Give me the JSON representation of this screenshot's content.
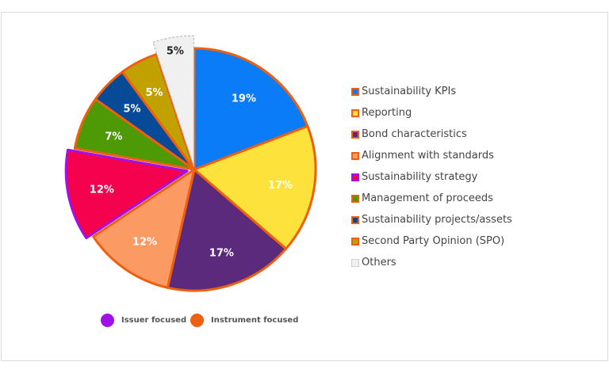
{
  "chart_data": {
    "type": "pie",
    "categories": [
      "Sustainability KPIs",
      "Reporting",
      "Bond characteristics",
      "Alignment with standards",
      "Sustainability strategy",
      "Management of proceeds",
      "Sustainability projects/assets",
      "Second Party Opinion (SPO)",
      "Others"
    ],
    "values": [
      19,
      17,
      17,
      12,
      12,
      7,
      5,
      5,
      5
    ],
    "labels": [
      "19%",
      "17%",
      "17%",
      "12%",
      "12%",
      "7%",
      "5%",
      "5%",
      "5%"
    ],
    "colors": [
      "#0a7cf7",
      "#fde23c",
      "#5b2a7c",
      "#fb9b63",
      "#f5024f",
      "#4e9a06",
      "#074a97",
      "#c1a100",
      "#f0f0f0"
    ],
    "border_colors": [
      "#ee5f0f",
      "#ee5f0f",
      "#ee5f0f",
      "#ee5f0f",
      "#a010e8",
      "#ee5f0f",
      "#ee5f0f",
      "#ee5f0f",
      "#bbbbbb"
    ],
    "group_legend": [
      {
        "label": "Issuer focused",
        "color": "#a010e8"
      },
      {
        "label": "Instrument focused",
        "color": "#ee5f0f"
      }
    ]
  }
}
